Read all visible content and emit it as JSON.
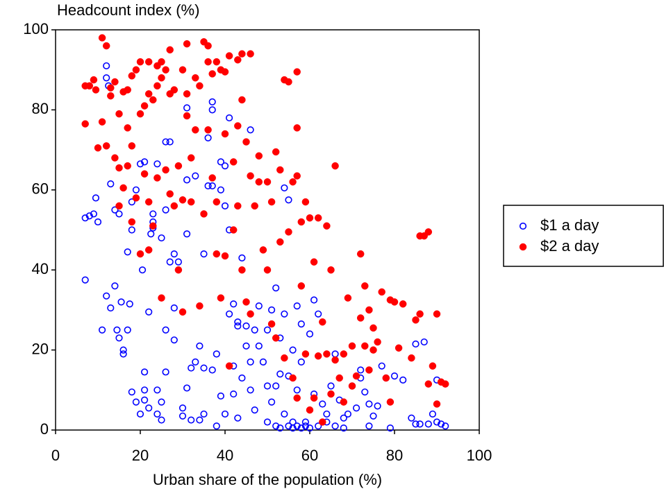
{
  "chart_data": {
    "type": "scatter",
    "title": "Headcount index (%)",
    "x_label": "Urban share of the population (%)",
    "xlim": [
      0,
      100
    ],
    "xticks": [
      0,
      20,
      40,
      60,
      80,
      100
    ],
    "ylim": [
      0,
      100
    ],
    "yticks": [
      0,
      20,
      40,
      60,
      80,
      100
    ],
    "legend": "right",
    "series": [
      {
        "name": "$1 a day",
        "color": "#0000ff",
        "marker": "open",
        "x": [
          7,
          7,
          8,
          9,
          9.5,
          10,
          11,
          12,
          12,
          12.5,
          13,
          12,
          13,
          14,
          14,
          14.5,
          15,
          15,
          15.5,
          16,
          16,
          17,
          17,
          17.5,
          18,
          18,
          18,
          19,
          19,
          20,
          20,
          20.5,
          21,
          21,
          21,
          21,
          22,
          22,
          22.5,
          23,
          23,
          23,
          24,
          24,
          24,
          25,
          25,
          25,
          26,
          26,
          26,
          26,
          27,
          27,
          28,
          28,
          28,
          29,
          30,
          30,
          31,
          31,
          31,
          31,
          32,
          32,
          33,
          33,
          34,
          34,
          35,
          35,
          35,
          36,
          36,
          37,
          37,
          37,
          37,
          38,
          38,
          39,
          39,
          39,
          40,
          40,
          40,
          41,
          41,
          41,
          42,
          42,
          42,
          43,
          43,
          43,
          44,
          44,
          45,
          45,
          46,
          46,
          46,
          47,
          47,
          48,
          48,
          49,
          50,
          50,
          50,
          51,
          51,
          52,
          52,
          52,
          53,
          53,
          53,
          54,
          54,
          54,
          55,
          55,
          55,
          56,
          56,
          56,
          57,
          57,
          57,
          58,
          58,
          58,
          59,
          59,
          60,
          60,
          61,
          61,
          62,
          62,
          63,
          64,
          64,
          65,
          66,
          66,
          67,
          68,
          68,
          69,
          70,
          71,
          72,
          72,
          73,
          74,
          74,
          75,
          76,
          77,
          78,
          79,
          80,
          82,
          84,
          85,
          85,
          86,
          87,
          88,
          89,
          90,
          90,
          91,
          92
        ],
        "values": [
          37.5,
          53,
          53.5,
          54,
          58,
          52,
          25,
          91,
          88,
          86,
          61.5,
          33.5,
          30.5,
          36,
          55,
          25,
          54,
          23,
          32,
          20,
          19,
          25,
          44.5,
          31.5,
          50,
          57,
          9.5,
          60,
          7,
          66.5,
          4,
          40,
          14.5,
          10,
          7.5,
          67,
          5.5,
          29.5,
          49,
          50.5,
          52,
          54,
          66.5,
          4,
          10,
          48,
          7,
          2.5,
          72,
          55,
          25,
          14.5,
          72,
          42,
          44,
          30.5,
          22.5,
          42,
          5.5,
          3.5,
          80.5,
          62.5,
          49,
          10.5,
          15.5,
          2.5,
          63.5,
          17,
          21,
          2.5,
          44,
          15.5,
          4,
          61,
          73,
          82,
          80,
          61,
          15,
          1,
          19,
          67,
          60,
          8.5,
          66,
          56,
          4,
          78,
          50,
          29,
          31.5,
          16,
          9,
          26,
          3,
          27,
          43,
          13,
          21,
          26,
          75,
          17,
          10,
          5,
          25,
          31,
          21,
          17,
          25,
          11,
          2,
          30,
          7,
          35.5,
          1,
          11,
          14,
          0.5,
          23,
          60.5,
          4,
          29,
          57.5,
          13.5,
          1,
          20,
          2,
          0.5,
          31,
          10,
          1,
          0.5,
          17,
          26.5,
          1,
          2,
          24,
          0.5,
          32.5,
          9,
          1,
          29,
          6.5,
          4,
          2,
          11,
          19,
          1,
          7.5,
          0.5,
          3,
          4,
          11,
          5.5,
          15,
          13,
          9.5,
          6.5,
          1,
          3.5,
          6,
          16,
          13,
          0.5,
          13.5,
          12.5,
          3,
          1.5,
          21.5,
          1.5,
          22,
          1.5,
          4,
          12.5,
          2,
          1.5,
          1
        ]
      },
      {
        "name": "$2 a day",
        "color": "#ff0000",
        "marker": "filled",
        "x": [
          7,
          7,
          8,
          9,
          9.5,
          10,
          11,
          11,
          12,
          12,
          13,
          13,
          14,
          14,
          15,
          15,
          15,
          16,
          16,
          17,
          17,
          17,
          18,
          18,
          18,
          19,
          19,
          20,
          20,
          20,
          21,
          21,
          22,
          22,
          22,
          22,
          23,
          23,
          24,
          24,
          24,
          25,
          25,
          25,
          26,
          26,
          27,
          27,
          27,
          28,
          28,
          29,
          29,
          30,
          30,
          30,
          31,
          31,
          31,
          32,
          32,
          33,
          33,
          34,
          34,
          35,
          35,
          36,
          36,
          36,
          37,
          37,
          38,
          38,
          38,
          39,
          39,
          40,
          40,
          40,
          41,
          41,
          42,
          42,
          43,
          43,
          43,
          44,
          44,
          44,
          45,
          45,
          46,
          46,
          46,
          47,
          48,
          48,
          49,
          50,
          50,
          51,
          51,
          52,
          52,
          53,
          53,
          54,
          54,
          55,
          55,
          56,
          56,
          57,
          57,
          57,
          57,
          58,
          58,
          59,
          59,
          60,
          60,
          61,
          61,
          62,
          62,
          63,
          63,
          64,
          64,
          65,
          65,
          66,
          66,
          67,
          68,
          68,
          69,
          70,
          70,
          71,
          72,
          72,
          73,
          73,
          74,
          74,
          75,
          75,
          76,
          77,
          78,
          79,
          79,
          80,
          81,
          82,
          84,
          85,
          86,
          86,
          87,
          88,
          88,
          89,
          90,
          90,
          91,
          92
        ],
        "values": [
          76.5,
          86,
          86,
          87.5,
          85,
          70.5,
          98,
          77,
          96,
          71,
          85.5,
          83.5,
          68,
          87,
          79,
          65.5,
          56,
          84.5,
          60.5,
          85,
          75.5,
          66,
          88.5,
          71,
          52,
          90,
          58,
          92,
          79,
          44,
          81,
          64,
          92,
          84,
          57,
          45,
          82.5,
          51,
          91,
          86,
          63,
          92,
          88,
          33,
          90,
          65,
          95,
          84,
          59,
          85,
          56,
          66,
          40,
          90,
          57.5,
          29.5,
          96.5,
          84,
          78.5,
          68,
          57,
          75,
          88,
          86,
          31,
          97,
          54,
          96,
          92,
          75,
          89,
          63,
          92,
          57,
          44,
          90,
          33,
          89.5,
          74,
          43.5,
          93.5,
          16,
          67,
          50,
          92.5,
          76,
          56,
          94,
          82.5,
          40,
          72,
          32,
          94,
          63.5,
          29,
          56,
          62,
          68.5,
          45,
          40,
          62,
          57,
          26.5,
          69.5,
          23,
          65,
          47,
          87.5,
          18,
          87,
          49.5,
          62,
          13,
          89.5,
          75.5,
          63.5,
          8,
          52,
          36,
          57,
          19,
          53,
          5,
          42,
          8,
          18.5,
          53,
          27,
          2,
          51,
          19,
          40,
          9,
          66,
          17.5,
          13,
          19,
          7,
          33,
          21,
          11,
          13.5,
          44,
          28,
          36,
          21,
          30,
          15,
          25.5,
          20,
          22,
          34.5,
          13,
          7,
          32.5,
          32,
          20.5,
          31.5,
          18,
          27.5,
          29,
          48.5,
          48.5,
          49.5,
          11.5,
          16,
          29,
          6.5,
          12,
          11.5
        ]
      }
    ]
  }
}
